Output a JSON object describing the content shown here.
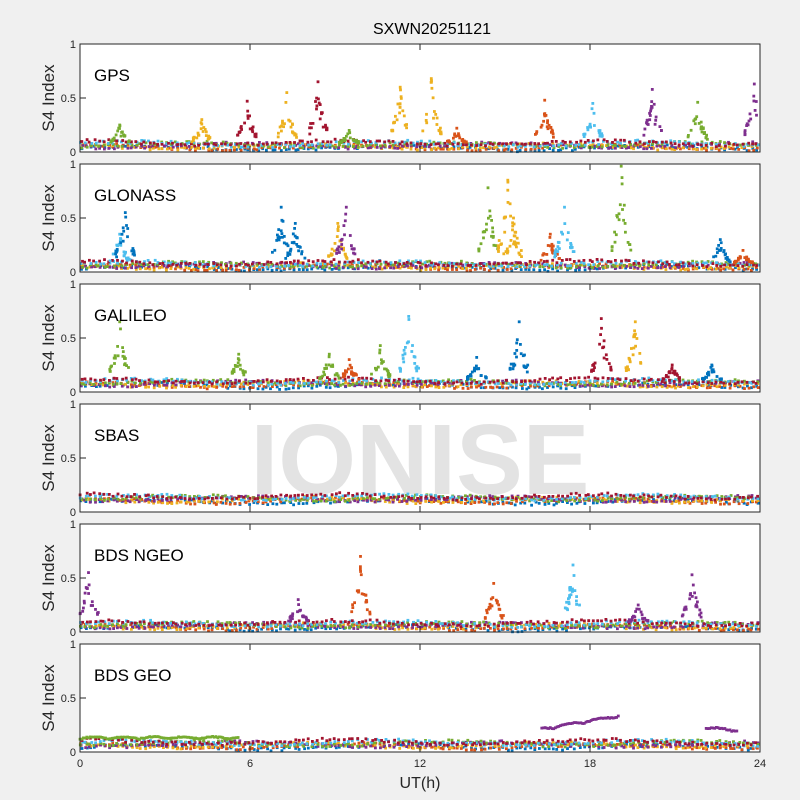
{
  "chart_data": {
    "type": "scatter",
    "title": "SXWN20251121",
    "xlabel": "UT(h)",
    "ylabel": "S4 Index",
    "xlim": [
      0,
      24
    ],
    "ylim": [
      0,
      1
    ],
    "xticks": [
      "0",
      "6",
      "12",
      "18",
      "24"
    ],
    "xtick_values": [
      0,
      6,
      12,
      18,
      24
    ],
    "yticks": [
      "0",
      "0.5",
      "1"
    ],
    "ytick_values": [
      0,
      0.5,
      1
    ],
    "watermark": "IONISE",
    "colors": [
      "#0072BD",
      "#D95319",
      "#EDB120",
      "#7E2F8E",
      "#77AC30",
      "#4DBEEE",
      "#A2142F"
    ],
    "panels": [
      {
        "name": "GPS",
        "baseline": 0.06,
        "spikes": [
          [
            1.4,
            0.25,
            4
          ],
          [
            4.3,
            0.3,
            2
          ],
          [
            5.9,
            0.47,
            6
          ],
          [
            7.3,
            0.55,
            2
          ],
          [
            8.4,
            0.65,
            6
          ],
          [
            9.5,
            0.2,
            4
          ],
          [
            11.3,
            0.6,
            2
          ],
          [
            12.4,
            0.68,
            2
          ],
          [
            13.3,
            0.22,
            1
          ],
          [
            16.4,
            0.48,
            1
          ],
          [
            18.1,
            0.45,
            5
          ],
          [
            20.2,
            0.58,
            3
          ],
          [
            21.8,
            0.46,
            4
          ],
          [
            23.8,
            0.63,
            3
          ]
        ],
        "segments": []
      },
      {
        "name": "GLONASS",
        "baseline": 0.06,
        "spikes": [
          [
            1.4,
            0.35,
            5
          ],
          [
            1.6,
            0.55,
            0
          ],
          [
            7.1,
            0.6,
            0
          ],
          [
            7.6,
            0.45,
            0
          ],
          [
            9.1,
            0.45,
            2
          ],
          [
            9.4,
            0.6,
            3
          ],
          [
            14.4,
            0.78,
            4
          ],
          [
            15.1,
            0.85,
            2
          ],
          [
            15.3,
            0.5,
            2
          ],
          [
            16.6,
            0.35,
            1
          ],
          [
            17.1,
            0.6,
            5
          ],
          [
            19.1,
            0.98,
            4
          ],
          [
            22.6,
            0.3,
            0
          ],
          [
            23.4,
            0.2,
            1
          ]
        ],
        "segments": []
      },
      {
        "name": "GALILEO",
        "baseline": 0.08,
        "spikes": [
          [
            1.4,
            0.65,
            4
          ],
          [
            5.6,
            0.35,
            4
          ],
          [
            8.8,
            0.35,
            4
          ],
          [
            9.5,
            0.3,
            1
          ],
          [
            10.6,
            0.43,
            4
          ],
          [
            11.6,
            0.7,
            5
          ],
          [
            14.0,
            0.32,
            0
          ],
          [
            15.5,
            0.65,
            0
          ],
          [
            18.4,
            0.68,
            6
          ],
          [
            19.6,
            0.65,
            2
          ],
          [
            20.9,
            0.25,
            6
          ],
          [
            22.3,
            0.25,
            0
          ]
        ],
        "segments": []
      },
      {
        "name": "SBAS",
        "baseline": 0.12,
        "spikes": [],
        "segments": []
      },
      {
        "name": "BDS NGEO",
        "baseline": 0.06,
        "spikes": [
          [
            0.3,
            0.55,
            3
          ],
          [
            7.7,
            0.3,
            3
          ],
          [
            9.9,
            0.7,
            1
          ],
          [
            14.6,
            0.45,
            1
          ],
          [
            17.4,
            0.62,
            5
          ],
          [
            19.7,
            0.25,
            3
          ],
          [
            21.6,
            0.53,
            3
          ]
        ],
        "segments": []
      },
      {
        "name": "BDS GEO",
        "baseline": 0.07,
        "spikes": [],
        "segments": [
          [
            0,
            5.6,
            0.12,
            0.12,
            4
          ],
          [
            16.3,
            19.0,
            0.2,
            0.32,
            3
          ],
          [
            22.1,
            23.2,
            0.21,
            0.19,
            3
          ]
        ]
      }
    ]
  }
}
